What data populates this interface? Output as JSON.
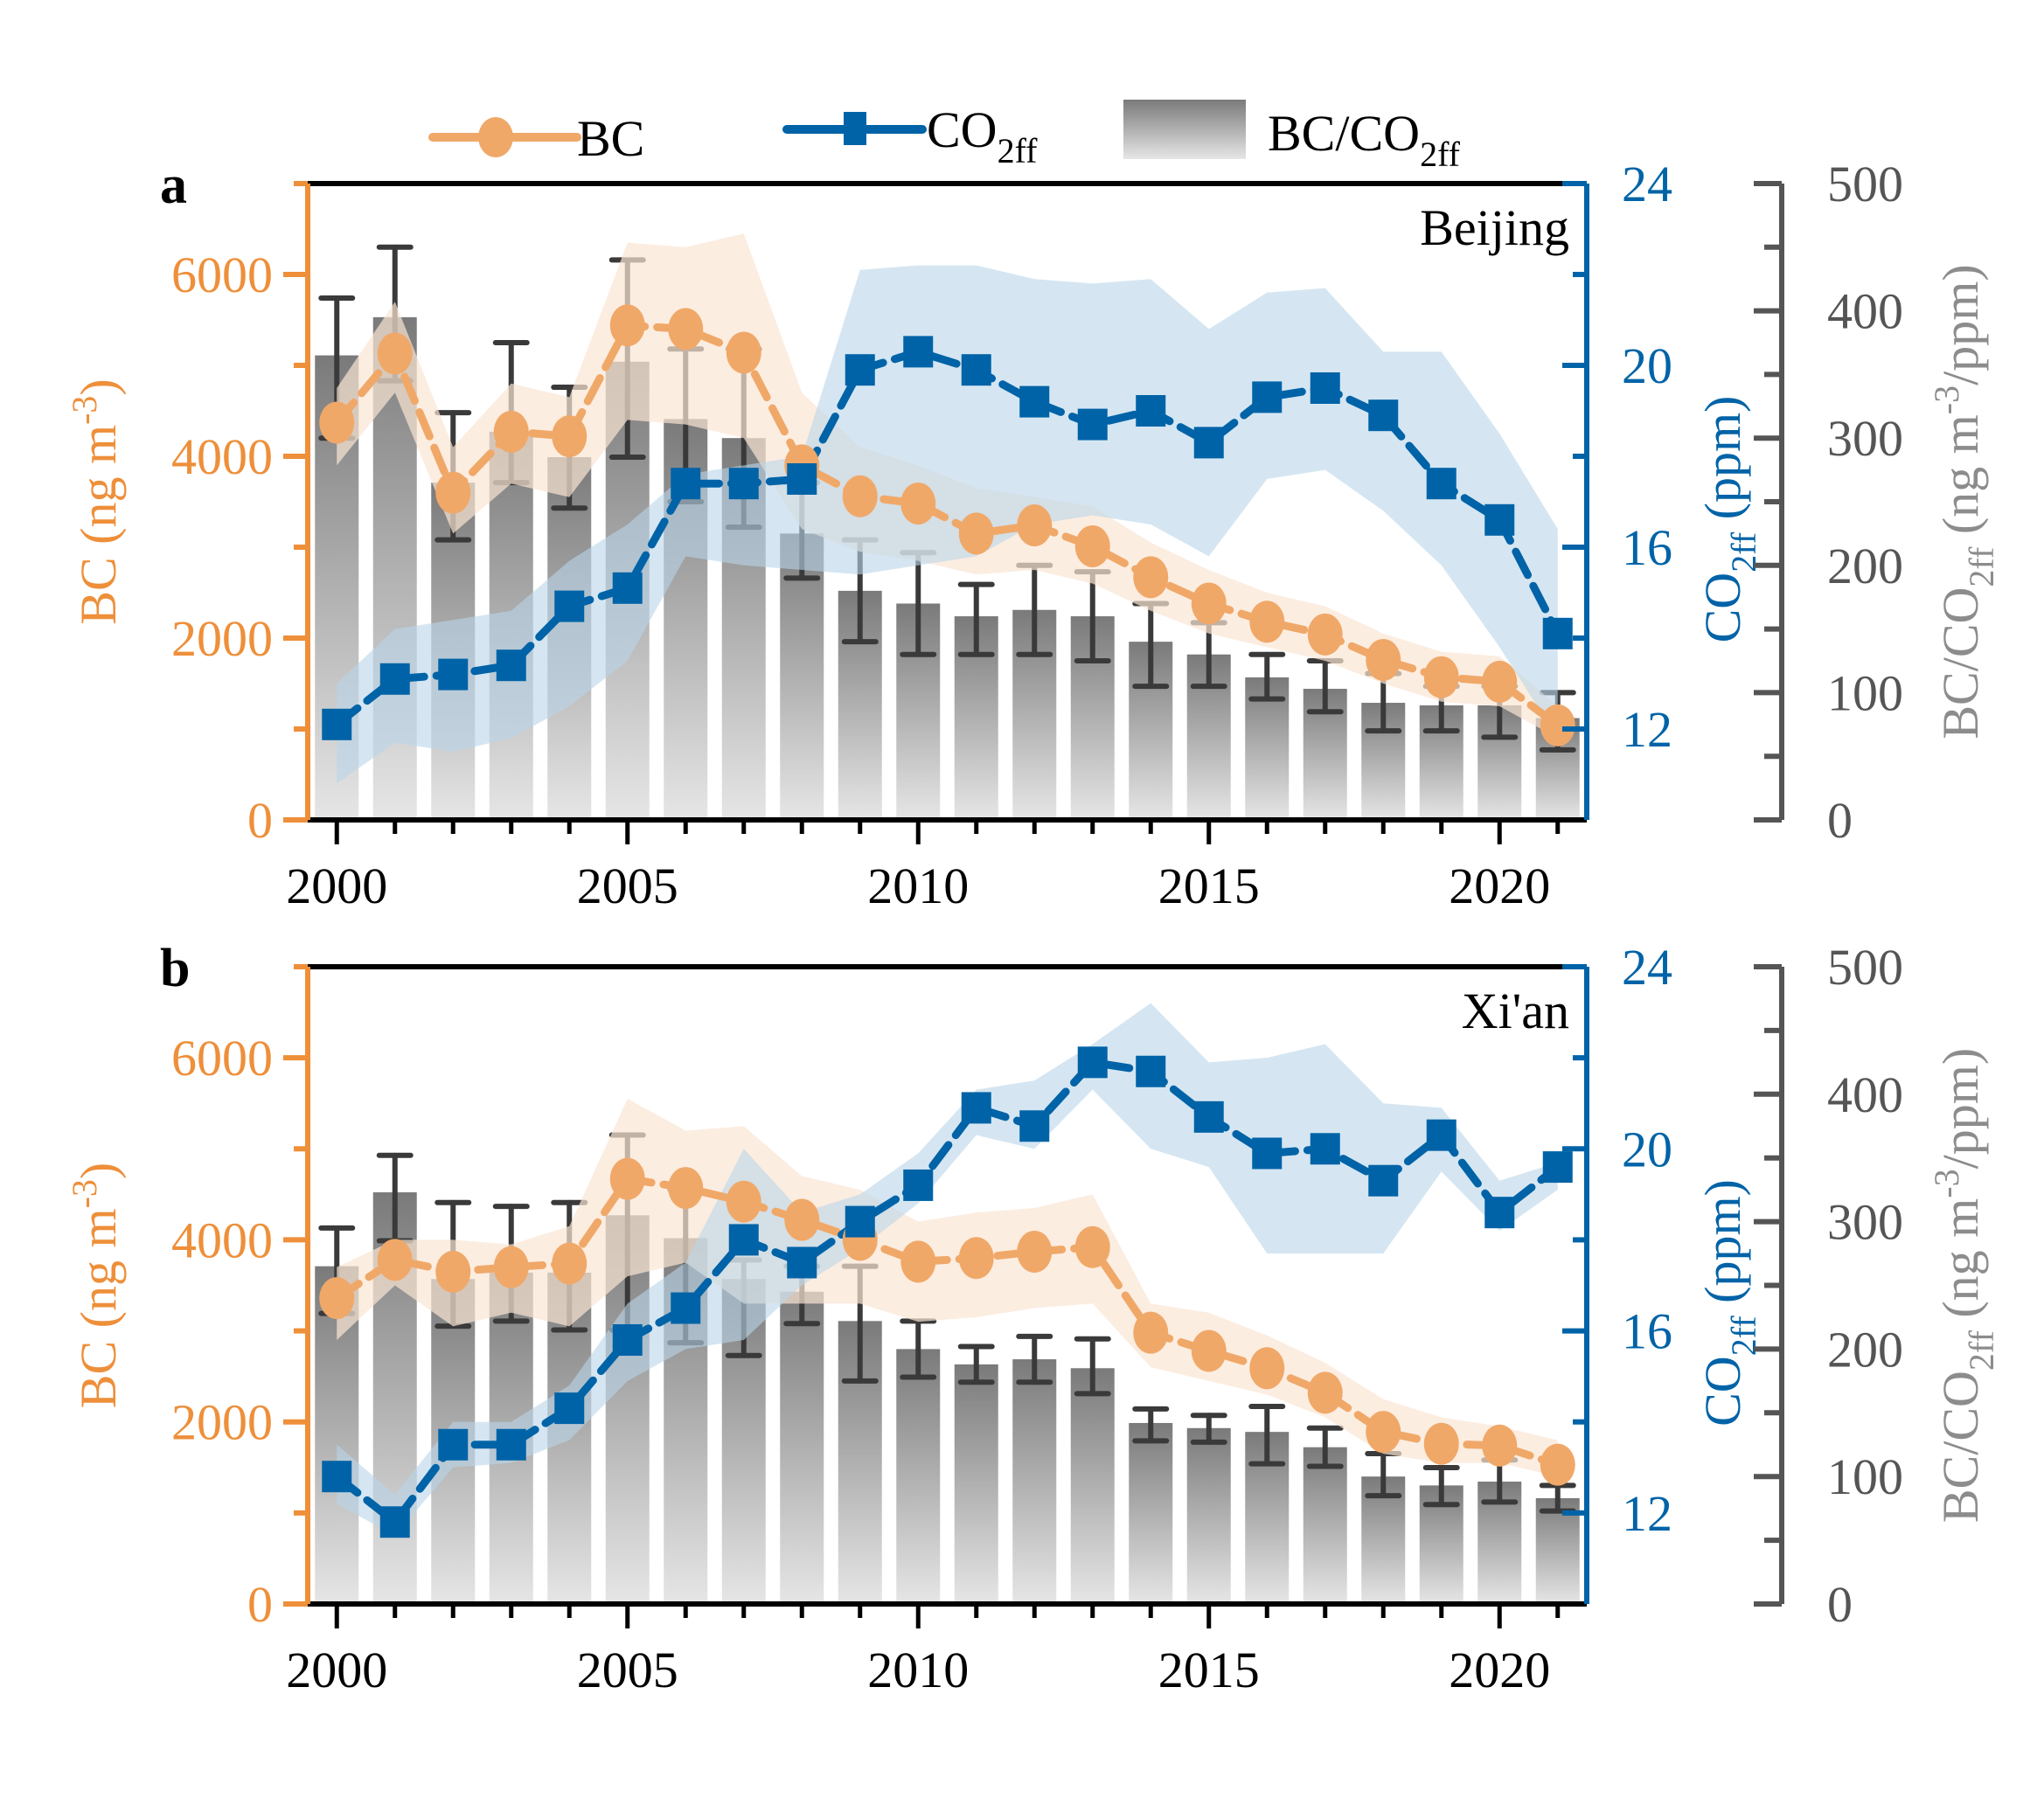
{
  "colors": {
    "bc": "#F0A868",
    "bc_axis": "#EE8F3A",
    "bc_band": "#FBE6D4",
    "co2": "#0063A7",
    "co2_band": "#B9D6EA",
    "ratio_axis": "#555555",
    "ratio_title": "#8C8C8C",
    "bar_top": "#7A7A7A",
    "bar_bottom": "#E6E6E6",
    "errbar": "#3A3A3A"
  },
  "legend": {
    "bc": "BC",
    "co2_main": "CO",
    "co2_sub": "2ff",
    "ratio_main": "BC/CO",
    "ratio_sub": "2ff"
  },
  "chart_data": [
    {
      "type": "bar+line",
      "panel_label": "a",
      "title": "Beijing",
      "x": [
        2000,
        2001,
        2002,
        2003,
        2004,
        2005,
        2006,
        2007,
        2008,
        2009,
        2010,
        2011,
        2012,
        2013,
        2014,
        2015,
        2016,
        2017,
        2018,
        2019,
        2020,
        2021
      ],
      "xticks": [
        2000,
        2005,
        2010,
        2015,
        2020
      ],
      "xlim": [
        1999.5,
        2021.5
      ],
      "axes": {
        "bc": {
          "label": "BC (ng m",
          "label_sup": "-3",
          "label_end": ")",
          "ylim": [
            0,
            7000
          ],
          "ticks": [
            0,
            2000,
            4000,
            6000
          ]
        },
        "co2": {
          "label": "CO",
          "label_sub": "2ff",
          "label_end": " (ppm)",
          "ylim": [
            10,
            24
          ],
          "ticks": [
            12,
            16,
            20,
            24
          ]
        },
        "ratio": {
          "label": "BC/CO",
          "label_sub": "2ff",
          "label_mid": " (ng m",
          "label_sup": "-3",
          "label_end": "/ppm)",
          "ylim": [
            0,
            500
          ],
          "ticks": [
            0,
            100,
            200,
            300,
            400,
            500
          ]
        }
      },
      "series": [
        {
          "name": "BC",
          "axis": "bc",
          "values": [
            4370,
            5130,
            3600,
            4270,
            4220,
            5440,
            5400,
            5140,
            3900,
            3560,
            3480,
            3150,
            3240,
            3010,
            2670,
            2380,
            2180,
            2040,
            1760,
            1570,
            1520,
            1040
          ],
          "band_low": [
            3900,
            4700,
            3150,
            3700,
            3550,
            4400,
            4350,
            4200,
            3200,
            2950,
            2850,
            2700,
            2750,
            2600,
            2300,
            2050,
            1900,
            1750,
            1500,
            1300,
            1250,
            900
          ],
          "band_high": [
            4750,
            5700,
            4100,
            4800,
            4650,
            6350,
            6300,
            6450,
            4700,
            4100,
            3900,
            3650,
            3550,
            3450,
            3050,
            2750,
            2500,
            2350,
            2050,
            1850,
            1800,
            1250
          ],
          "err_low": [
            null,
            4700,
            3050,
            3650,
            3350,
            null,
            null,
            2950,
            null,
            null,
            null,
            null,
            null,
            null,
            null,
            null,
            null,
            null,
            null,
            null,
            null,
            null
          ],
          "err_high": [
            null,
            null,
            null,
            null,
            4600,
            6150,
            null,
            5350,
            null,
            null,
            null,
            null,
            null,
            null,
            null,
            null,
            null,
            null,
            null,
            null,
            null,
            null
          ]
        },
        {
          "name": "CO2ff",
          "axis": "co2",
          "values": [
            12.1,
            13.1,
            13.2,
            13.4,
            14.7,
            15.1,
            17.4,
            17.4,
            17.5,
            19.9,
            20.3,
            19.9,
            19.2,
            18.7,
            19.0,
            18.3,
            19.3,
            19.5,
            18.9,
            17.4,
            16.6,
            14.1
          ],
          "band_low": [
            10.8,
            11.7,
            11.5,
            11.8,
            12.5,
            13.5,
            15.8,
            15.6,
            15.5,
            15.4,
            15.6,
            15.8,
            16.5,
            16.7,
            16.5,
            15.8,
            17.5,
            17.7,
            16.8,
            15.6,
            13.8,
            11.8
          ],
          "band_high": [
            13.0,
            14.2,
            14.4,
            14.6,
            15.7,
            16.5,
            17.6,
            17.8,
            18.0,
            22.1,
            22.2,
            22.2,
            21.9,
            21.8,
            21.9,
            20.8,
            21.6,
            21.7,
            20.3,
            20.3,
            18.5,
            16.4
          ]
        },
        {
          "name": "BC/CO2ff",
          "axis": "ratio",
          "values": [
            365,
            395,
            265,
            305,
            285,
            360,
            315,
            300,
            225,
            180,
            170,
            160,
            165,
            160,
            140,
            130,
            112,
            103,
            92,
            90,
            90,
            80
          ],
          "err_low": [
            300,
            345,
            220,
            265,
            245,
            285,
            250,
            230,
            190,
            140,
            130,
            130,
            130,
            125,
            105,
            105,
            95,
            85,
            70,
            70,
            65,
            55
          ],
          "err_high": [
            410,
            450,
            320,
            375,
            340,
            440,
            370,
            370,
            265,
            220,
            210,
            185,
            200,
            195,
            170,
            155,
            130,
            125,
            115,
            105,
            105,
            100
          ]
        }
      ]
    },
    {
      "type": "bar+line",
      "panel_label": "b",
      "title": "Xi'an",
      "x": [
        2000,
        2001,
        2002,
        2003,
        2004,
        2005,
        2006,
        2007,
        2008,
        2009,
        2010,
        2011,
        2012,
        2013,
        2014,
        2015,
        2016,
        2017,
        2018,
        2019,
        2020,
        2021
      ],
      "xticks": [
        2000,
        2005,
        2010,
        2015,
        2020
      ],
      "xlim": [
        1999.5,
        2021.5
      ],
      "axes": {
        "bc": {
          "label": "BC (ng m",
          "label_sup": "-3",
          "label_end": ")",
          "ylim": [
            0,
            7000
          ],
          "ticks": [
            0,
            2000,
            4000,
            6000
          ]
        },
        "co2": {
          "label": "CO",
          "label_sub": "2ff",
          "label_end": " (ppm)",
          "ylim": [
            10,
            24
          ],
          "ticks": [
            12,
            16,
            20,
            24
          ]
        },
        "ratio": {
          "label": "BC/CO",
          "label_sub": "2ff",
          "label_mid": " (ng m",
          "label_sup": "-3",
          "label_end": "/ppm)",
          "ylim": [
            0,
            500
          ],
          "ticks": [
            0,
            100,
            200,
            300,
            400,
            500
          ]
        }
      },
      "series": [
        {
          "name": "BC",
          "axis": "bc",
          "values": [
            3360,
            3780,
            3650,
            3700,
            3740,
            4670,
            4570,
            4420,
            4220,
            4000,
            3760,
            3800,
            3870,
            3920,
            2980,
            2780,
            2590,
            2320,
            1890,
            1760,
            1740,
            1530
          ],
          "band_low": [
            2900,
            3500,
            3050,
            3200,
            3050,
            3600,
            3750,
            3300,
            3300,
            3300,
            3100,
            3150,
            3250,
            3300,
            2600,
            2450,
            2300,
            2050,
            1650,
            1550,
            1550,
            1400
          ],
          "band_high": [
            3700,
            4000,
            4000,
            3950,
            4150,
            5550,
            5200,
            5250,
            4700,
            4550,
            4200,
            4300,
            4350,
            4500,
            3300,
            3200,
            2950,
            2650,
            2250,
            2050,
            1950,
            1800
          ],
          "err_low": [
            null,
            3900,
            3150,
            3200,
            3050,
            3700,
            3400,
            null,
            null,
            null,
            null,
            null,
            null,
            null,
            null,
            null,
            null,
            null,
            null,
            null,
            null,
            null
          ],
          "err_high": [
            null,
            null,
            null,
            null,
            4300,
            5100,
            4400,
            4450,
            null,
            null,
            null,
            null,
            null,
            null,
            null,
            null,
            1650,
            null,
            1650,
            null,
            1700,
            null
          ]
        },
        {
          "name": "CO2ff",
          "axis": "co2",
          "values": [
            12.8,
            11.8,
            13.5,
            13.5,
            14.3,
            15.8,
            16.5,
            18.0,
            17.5,
            18.4,
            19.2,
            20.9,
            20.5,
            21.9,
            21.7,
            20.7,
            19.9,
            20.0,
            19.3,
            20.3,
            18.6,
            19.6
          ],
          "band_low": [
            12.2,
            11.5,
            13.0,
            13.1,
            13.6,
            14.9,
            15.6,
            15.8,
            17.0,
            17.8,
            18.8,
            20.3,
            20.0,
            21.3,
            20.0,
            19.6,
            17.7,
            17.7,
            17.7,
            19.5,
            18.2,
            19.1
          ],
          "band_high": [
            13.5,
            12.4,
            14.0,
            14.0,
            14.8,
            16.6,
            17.5,
            20.0,
            18.6,
            19.0,
            19.9,
            21.3,
            21.5,
            22.3,
            23.2,
            21.9,
            22.0,
            22.3,
            21.0,
            20.9,
            19.3,
            19.7
          ]
        },
        {
          "name": "BC/CO2ff",
          "axis": "ratio",
          "values": [
            265,
            323,
            255,
            260,
            260,
            305,
            287,
            255,
            245,
            222,
            200,
            188,
            192,
            185,
            142,
            138,
            135,
            123,
            100,
            93,
            96,
            83
          ],
          "err_low": [
            228,
            285,
            218,
            222,
            215,
            215,
            205,
            195,
            220,
            175,
            178,
            174,
            174,
            165,
            128,
            127,
            110,
            108,
            85,
            78,
            80,
            73
          ],
          "err_high": [
            295,
            352,
            315,
            312,
            315,
            368,
            325,
            270,
            265,
            265,
            222,
            202,
            210,
            208,
            153,
            148,
            155,
            138,
            118,
            107,
            113,
            93
          ]
        }
      ]
    }
  ]
}
